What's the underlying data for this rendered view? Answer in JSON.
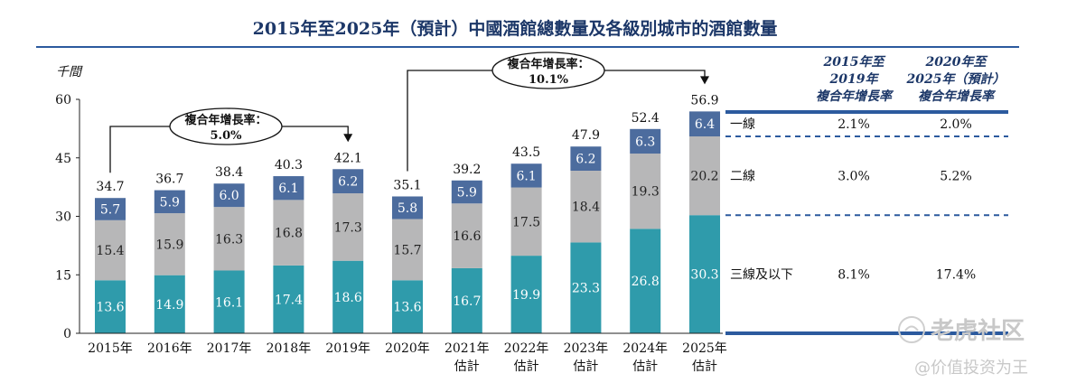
{
  "title": "2015年至2025年（預計）中國酒館總數量及各級別城市的酒館數量",
  "unit": "千間",
  "colors": {
    "tier1": "#4c6c9e",
    "tier2": "#b7b7b8",
    "tier3": "#2f9bab",
    "title": "#1c3768",
    "rule": "#2c5a9e"
  },
  "chart_data": {
    "type": "bar",
    "stacked": true,
    "ylim": [
      0,
      60
    ],
    "yticks": [
      "0",
      "15",
      "30",
      "45",
      "60"
    ],
    "categories": [
      {
        "line1": "2015年",
        "line2": ""
      },
      {
        "line1": "2016年",
        "line2": ""
      },
      {
        "line1": "2017年",
        "line2": ""
      },
      {
        "line1": "2018年",
        "line2": ""
      },
      {
        "line1": "2019年",
        "line2": ""
      },
      {
        "line1": "2020年",
        "line2": ""
      },
      {
        "line1": "2021年",
        "line2": "估計"
      },
      {
        "line1": "2022年",
        "line2": "估計"
      },
      {
        "line1": "2023年",
        "line2": "估計"
      },
      {
        "line1": "2024年",
        "line2": "估計"
      },
      {
        "line1": "2025年",
        "line2": "估計"
      }
    ],
    "totals": [
      "34.7",
      "36.7",
      "38.4",
      "40.3",
      "42.1",
      "35.1",
      "39.2",
      "43.5",
      "47.9",
      "52.4",
      "56.9"
    ],
    "series": [
      {
        "key": "tier3",
        "values": [
          13.6,
          14.9,
          16.1,
          17.4,
          18.6,
          13.6,
          16.7,
          19.9,
          23.3,
          26.8,
          30.3
        ],
        "labels": [
          "13.6",
          "14.9",
          "16.1",
          "17.4",
          "18.6",
          "13.6",
          "16.7",
          "19.9",
          "23.3",
          "26.8",
          "30.3"
        ]
      },
      {
        "key": "tier2",
        "values": [
          15.4,
          15.9,
          16.3,
          16.8,
          17.3,
          15.7,
          16.6,
          17.5,
          18.4,
          19.3,
          20.2
        ],
        "labels": [
          "15.4",
          "15.9",
          "16.3",
          "16.8",
          "17.3",
          "15.7",
          "16.6",
          "17.5",
          "18.4",
          "19.3",
          "20.2"
        ]
      },
      {
        "key": "tier1",
        "values": [
          5.7,
          5.9,
          6.0,
          6.1,
          6.2,
          5.8,
          5.9,
          6.1,
          6.2,
          6.3,
          6.4
        ],
        "labels": [
          "5.7",
          "5.9",
          "6.0",
          "6.1",
          "6.2",
          "5.8",
          "5.9",
          "6.1",
          "6.2",
          "6.3",
          "6.4"
        ]
      }
    ],
    "annotations": [
      {
        "title": "複合年增長率：",
        "value": "5.0%",
        "from": 0,
        "to": 4
      },
      {
        "title": "複合年增長率：",
        "value": "10.1%",
        "from": 5,
        "to": 10
      }
    ]
  },
  "cagr_table": {
    "headers": [
      [
        "2015年至",
        "2019年",
        "複合年增長率"
      ],
      [
        "2020年至",
        "2025年（預計）",
        "複合年增長率"
      ]
    ],
    "rows": [
      {
        "label": "一線",
        "v1": "2.1%",
        "v2": "2.0%"
      },
      {
        "label": "二線",
        "v1": "3.0%",
        "v2": "5.2%"
      },
      {
        "label": "三線及以下",
        "v1": "8.1%",
        "v2": "17.4%"
      }
    ]
  },
  "watermark": {
    "line1": "老虎社区",
    "line2": "@价值投资为王"
  }
}
